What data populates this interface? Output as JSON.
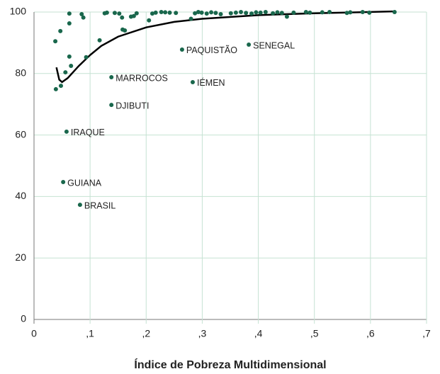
{
  "chart_data": {
    "type": "scatter",
    "x_label": "Índice de Pobreza Multidimensional",
    "color": "#19674c",
    "line_color": "#000000",
    "grid": true,
    "xlim": [
      0,
      0.7
    ],
    "ylim": [
      0,
      100
    ],
    "xticks": [
      0,
      {
        "value": 0.1,
        "label": ",1"
      },
      {
        "value": 0.2,
        "label": ",2"
      },
      {
        "value": 0.3,
        "label": ",3"
      },
      {
        "value": 0.4,
        "label": ",4"
      },
      {
        "value": 0.5,
        "label": ",5"
      },
      {
        "value": 0.6,
        "label": ",6"
      },
      {
        "value": 0.7,
        "label": ",7"
      }
    ],
    "yticks": [
      0,
      20,
      40,
      60,
      80,
      100
    ],
    "x": [
      0.383,
      0.264,
      0.138,
      0.283,
      0.138,
      0.058,
      0.052,
      0.082,
      0.038,
      0.047,
      0.063,
      0.063,
      0.039,
      0.048,
      0.056,
      0.063,
      0.066,
      0.085,
      0.088,
      0.093,
      0.117,
      0.126,
      0.13,
      0.144,
      0.152,
      0.157,
      0.158,
      0.162,
      0.173,
      0.178,
      0.183,
      0.205,
      0.211,
      0.217,
      0.227,
      0.234,
      0.242,
      0.253,
      0.28,
      0.287,
      0.293,
      0.299,
      0.308,
      0.316,
      0.324,
      0.333,
      0.351,
      0.36,
      0.369,
      0.378,
      0.388,
      0.396,
      0.404,
      0.413,
      0.426,
      0.434,
      0.442,
      0.451,
      0.463,
      0.485,
      0.492,
      0.514,
      0.527,
      0.558,
      0.564,
      0.586,
      0.598,
      0.643
    ],
    "y": [
      89.4,
      87.8,
      78.8,
      77.2,
      69.8,
      61.1,
      44.7,
      37.3,
      90.5,
      93.8,
      99.5,
      96.3,
      74.9,
      76.0,
      80.4,
      85.5,
      82.5,
      99.3,
      98.2,
      85.3,
      90.8,
      99.6,
      99.8,
      99.7,
      99.5,
      98.2,
      94.3,
      94.0,
      98.5,
      98.7,
      99.6,
      97.3,
      99.5,
      99.8,
      100.0,
      99.9,
      99.8,
      99.7,
      97.8,
      99.6,
      100.0,
      99.8,
      99.5,
      99.9,
      99.7,
      99.3,
      99.6,
      99.8,
      100.0,
      99.7,
      99.5,
      99.9,
      99.8,
      100.0,
      99.6,
      99.9,
      99.7,
      98.5,
      99.8,
      100.0,
      99.8,
      99.9,
      100.0,
      99.7,
      99.9,
      100.0,
      99.8,
      100.0
    ],
    "labels": [
      "SENEGAL",
      "PAQUISTÃO",
      "MARROCOS",
      "IÉMEN",
      "DJIBUTI",
      "IRAQUE",
      "GUIANA",
      "BRASIL",
      null,
      null,
      null,
      null,
      null,
      null,
      null,
      null,
      null,
      null,
      null,
      null,
      null,
      null,
      null,
      null,
      null,
      null,
      null,
      null,
      null,
      null,
      null,
      null,
      null,
      null,
      null,
      null,
      null,
      null,
      null,
      null,
      null,
      null,
      null,
      null,
      null,
      null,
      null,
      null,
      null,
      null,
      null,
      null,
      null,
      null,
      null,
      null,
      null,
      null,
      null,
      null,
      null,
      null,
      null,
      null,
      null,
      null,
      null,
      null
    ],
    "fit": {
      "x": [
        0.04,
        0.045,
        0.05,
        0.06,
        0.08,
        0.1,
        0.12,
        0.15,
        0.2,
        0.25,
        0.3,
        0.4,
        0.5,
        0.64
      ],
      "y": [
        82,
        78,
        77.2,
        78.5,
        82.5,
        86,
        89,
        92,
        95,
        96.8,
        97.8,
        99,
        99.6,
        100.2
      ]
    }
  }
}
